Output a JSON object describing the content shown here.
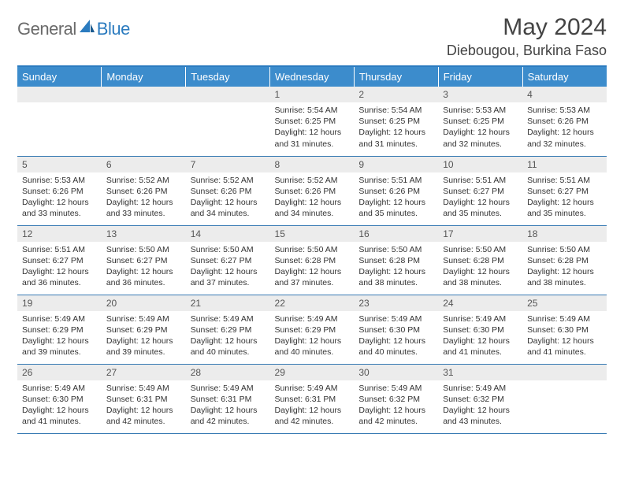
{
  "logo": {
    "text1": "General",
    "text2": "Blue"
  },
  "title": "May 2024",
  "subtitle": "Diebougou, Burkina Faso",
  "colors": {
    "header_bg": "#3c8ccc",
    "header_text": "#ffffff",
    "border": "#377ab3",
    "daynum_bg": "#ececec",
    "logo_gray": "#6a6a6a",
    "logo_blue": "#2b7bbf"
  },
  "day_headers": [
    "Sunday",
    "Monday",
    "Tuesday",
    "Wednesday",
    "Thursday",
    "Friday",
    "Saturday"
  ],
  "weeks": [
    [
      null,
      null,
      null,
      {
        "n": "1",
        "sunrise": "5:54 AM",
        "sunset": "6:25 PM",
        "daylight": "12 hours and 31 minutes."
      },
      {
        "n": "2",
        "sunrise": "5:54 AM",
        "sunset": "6:25 PM",
        "daylight": "12 hours and 31 minutes."
      },
      {
        "n": "3",
        "sunrise": "5:53 AM",
        "sunset": "6:25 PM",
        "daylight": "12 hours and 32 minutes."
      },
      {
        "n": "4",
        "sunrise": "5:53 AM",
        "sunset": "6:26 PM",
        "daylight": "12 hours and 32 minutes."
      }
    ],
    [
      {
        "n": "5",
        "sunrise": "5:53 AM",
        "sunset": "6:26 PM",
        "daylight": "12 hours and 33 minutes."
      },
      {
        "n": "6",
        "sunrise": "5:52 AM",
        "sunset": "6:26 PM",
        "daylight": "12 hours and 33 minutes."
      },
      {
        "n": "7",
        "sunrise": "5:52 AM",
        "sunset": "6:26 PM",
        "daylight": "12 hours and 34 minutes."
      },
      {
        "n": "8",
        "sunrise": "5:52 AM",
        "sunset": "6:26 PM",
        "daylight": "12 hours and 34 minutes."
      },
      {
        "n": "9",
        "sunrise": "5:51 AM",
        "sunset": "6:26 PM",
        "daylight": "12 hours and 35 minutes."
      },
      {
        "n": "10",
        "sunrise": "5:51 AM",
        "sunset": "6:27 PM",
        "daylight": "12 hours and 35 minutes."
      },
      {
        "n": "11",
        "sunrise": "5:51 AM",
        "sunset": "6:27 PM",
        "daylight": "12 hours and 35 minutes."
      }
    ],
    [
      {
        "n": "12",
        "sunrise": "5:51 AM",
        "sunset": "6:27 PM",
        "daylight": "12 hours and 36 minutes."
      },
      {
        "n": "13",
        "sunrise": "5:50 AM",
        "sunset": "6:27 PM",
        "daylight": "12 hours and 36 minutes."
      },
      {
        "n": "14",
        "sunrise": "5:50 AM",
        "sunset": "6:27 PM",
        "daylight": "12 hours and 37 minutes."
      },
      {
        "n": "15",
        "sunrise": "5:50 AM",
        "sunset": "6:28 PM",
        "daylight": "12 hours and 37 minutes."
      },
      {
        "n": "16",
        "sunrise": "5:50 AM",
        "sunset": "6:28 PM",
        "daylight": "12 hours and 38 minutes."
      },
      {
        "n": "17",
        "sunrise": "5:50 AM",
        "sunset": "6:28 PM",
        "daylight": "12 hours and 38 minutes."
      },
      {
        "n": "18",
        "sunrise": "5:50 AM",
        "sunset": "6:28 PM",
        "daylight": "12 hours and 38 minutes."
      }
    ],
    [
      {
        "n": "19",
        "sunrise": "5:49 AM",
        "sunset": "6:29 PM",
        "daylight": "12 hours and 39 minutes."
      },
      {
        "n": "20",
        "sunrise": "5:49 AM",
        "sunset": "6:29 PM",
        "daylight": "12 hours and 39 minutes."
      },
      {
        "n": "21",
        "sunrise": "5:49 AM",
        "sunset": "6:29 PM",
        "daylight": "12 hours and 40 minutes."
      },
      {
        "n": "22",
        "sunrise": "5:49 AM",
        "sunset": "6:29 PM",
        "daylight": "12 hours and 40 minutes."
      },
      {
        "n": "23",
        "sunrise": "5:49 AM",
        "sunset": "6:30 PM",
        "daylight": "12 hours and 40 minutes."
      },
      {
        "n": "24",
        "sunrise": "5:49 AM",
        "sunset": "6:30 PM",
        "daylight": "12 hours and 41 minutes."
      },
      {
        "n": "25",
        "sunrise": "5:49 AM",
        "sunset": "6:30 PM",
        "daylight": "12 hours and 41 minutes."
      }
    ],
    [
      {
        "n": "26",
        "sunrise": "5:49 AM",
        "sunset": "6:30 PM",
        "daylight": "12 hours and 41 minutes."
      },
      {
        "n": "27",
        "sunrise": "5:49 AM",
        "sunset": "6:31 PM",
        "daylight": "12 hours and 42 minutes."
      },
      {
        "n": "28",
        "sunrise": "5:49 AM",
        "sunset": "6:31 PM",
        "daylight": "12 hours and 42 minutes."
      },
      {
        "n": "29",
        "sunrise": "5:49 AM",
        "sunset": "6:31 PM",
        "daylight": "12 hours and 42 minutes."
      },
      {
        "n": "30",
        "sunrise": "5:49 AM",
        "sunset": "6:32 PM",
        "daylight": "12 hours and 42 minutes."
      },
      {
        "n": "31",
        "sunrise": "5:49 AM",
        "sunset": "6:32 PM",
        "daylight": "12 hours and 43 minutes."
      },
      null
    ]
  ],
  "labels": {
    "sunrise": "Sunrise:",
    "sunset": "Sunset:",
    "daylight": "Daylight:"
  }
}
